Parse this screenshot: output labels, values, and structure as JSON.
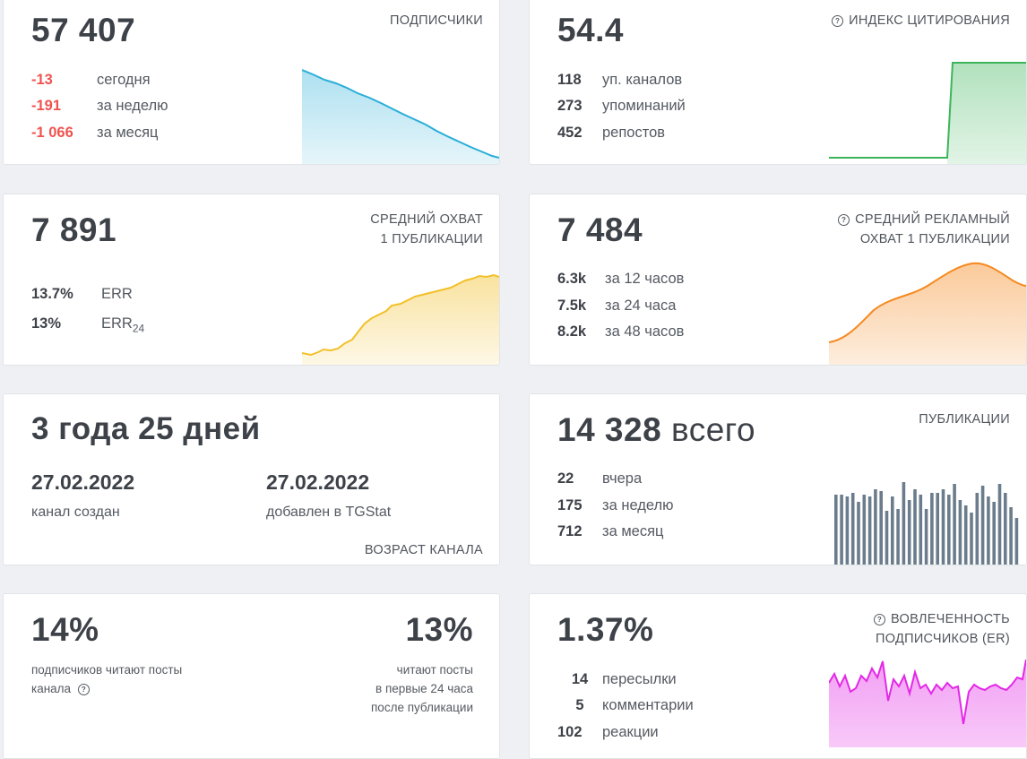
{
  "subscribers": {
    "value": "57 407",
    "label": "ПОДПИСЧИКИ",
    "rows": [
      {
        "num": "-13",
        "text": "сегодня"
      },
      {
        "num": "-191",
        "text": "за неделю"
      },
      {
        "num": "-1 066",
        "text": "за месяц"
      }
    ],
    "color": "#29aed8"
  },
  "citation": {
    "value": "54.4",
    "label": "ИНДЕКС ЦИТИРОВАНИЯ",
    "rows": [
      {
        "num": "118",
        "text": "уп. каналов"
      },
      {
        "num": "273",
        "text": "упоминаний"
      },
      {
        "num": "452",
        "text": "репостов"
      }
    ],
    "color": "#3cb55a"
  },
  "reach": {
    "value": "7 891",
    "label_line1": "СРЕДНИЙ ОХВАТ",
    "label_line2": "1 ПУБЛИКАЦИИ",
    "rows": [
      {
        "num": "13.7%",
        "text": "ERR",
        "sub": ""
      },
      {
        "num": "13%",
        "text": "ERR",
        "sub": "24"
      }
    ],
    "color": "#f2c029"
  },
  "ad_reach": {
    "value": "7 484",
    "label_line1": "СРЕДНИЙ РЕКЛАМНЫЙ",
    "label_line2": "ОХВАТ 1 ПУБЛИКАЦИИ",
    "rows": [
      {
        "num": "6.3k",
        "text": "за 12 часов"
      },
      {
        "num": "7.5k",
        "text": "за 24 часа"
      },
      {
        "num": "8.2k",
        "text": "за 48 часов"
      }
    ],
    "color": "#f5891f"
  },
  "age": {
    "value": "3 года 25 дней",
    "created_date": "27.02.2022",
    "created_caption": "канал создан",
    "added_date": "27.02.2022",
    "added_caption": "добавлен в TGStat",
    "label": "ВОЗРАСТ КАНАЛА"
  },
  "posts": {
    "value": "14 328",
    "suffix": "всего",
    "label": "ПУБЛИКАЦИИ",
    "rows": [
      {
        "num": "22",
        "text": "вчера"
      },
      {
        "num": "175",
        "text": "за неделю"
      },
      {
        "num": "712",
        "text": "за месяц"
      }
    ],
    "color": "#6b7d8c"
  },
  "reading": {
    "left_value": "14%",
    "left_caption_line1": "подписчиков читают посты",
    "left_caption_line2": "канала",
    "right_value": "13%",
    "right_caption_line1": "читают посты",
    "right_caption_line2": "в первые 24 часа",
    "right_caption_line3": "после публикации"
  },
  "engagement": {
    "value": "1.37%",
    "label_line1": "ВОВЛЕЧЕННОСТЬ",
    "label_line2": "ПОДПИСЧИКОВ (ER)",
    "rows": [
      {
        "num": "14",
        "text": "пересылки"
      },
      {
        "num": "5",
        "text": "комментарии"
      },
      {
        "num": "102",
        "text": "реакции"
      }
    ],
    "color": "#e229e6"
  }
}
